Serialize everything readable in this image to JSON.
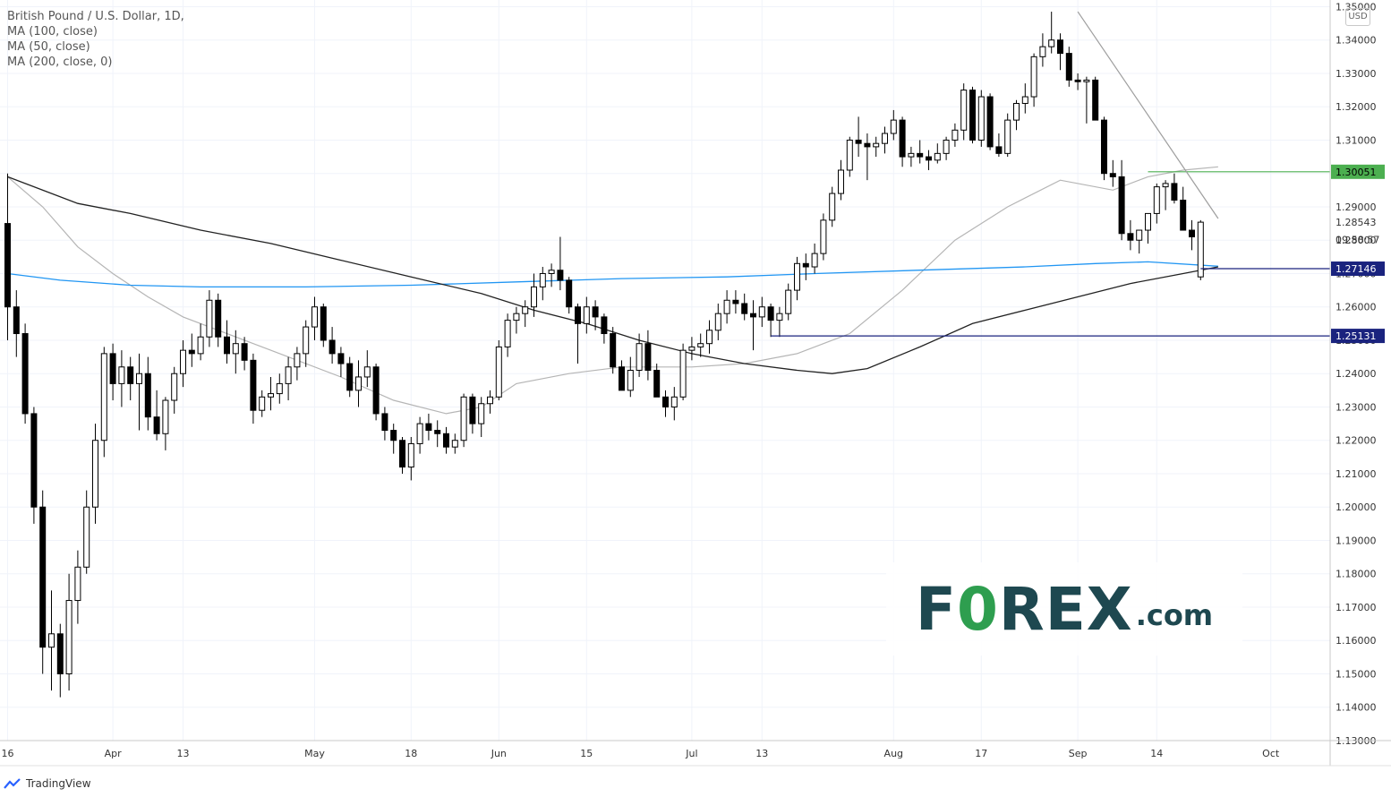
{
  "legend": {
    "title": "British Pound / U.S. Dollar, 1D,",
    "ma1": "MA (100, close)",
    "ma2": "MA (50, close)",
    "ma3": "MA (200, close, 0)"
  },
  "currency": "USD",
  "watermark": {
    "pre": "F",
    "o": "0",
    "post": "REX",
    "suffix": ".com"
  },
  "footer": {
    "brand": "TradingView",
    "icon": "tradingview-logo-icon"
  },
  "colors": {
    "ma100": "#222222",
    "ma50": "#b5b5b5",
    "ma200": "#2196f3",
    "resistance": "#4caf50",
    "support": "#1a237e",
    "trendline": "#9e9e9e"
  },
  "chart_data": {
    "type": "candlestick",
    "title": "British Pound / U.S. Dollar, 1D,",
    "ylim": [
      1.13,
      1.352
    ],
    "y_ticks": [
      "1.35000",
      "1.34000",
      "1.33000",
      "1.32000",
      "1.31000",
      "1.30000",
      "1.29000",
      "1.28000",
      "1.27000",
      "1.26000",
      "1.25000",
      "1.24000",
      "1.23000",
      "1.22000",
      "1.21000",
      "1.20000",
      "1.19000",
      "1.18000",
      "1.17000",
      "1.16000",
      "1.15000",
      "1.14000",
      "1.13000"
    ],
    "x_labels": [
      {
        "label": "16",
        "index": 0
      },
      {
        "label": "Apr",
        "index": 12
      },
      {
        "label": "13",
        "index": 20
      },
      {
        "label": "May",
        "index": 35
      },
      {
        "label": "18",
        "index": 46
      },
      {
        "label": "Jun",
        "index": 56
      },
      {
        "label": "15",
        "index": 66
      },
      {
        "label": "Jul",
        "index": 78
      },
      {
        "label": "13",
        "index": 86
      },
      {
        "label": "Aug",
        "index": 101
      },
      {
        "label": "17",
        "index": 111
      },
      {
        "label": "Sep",
        "index": 122
      },
      {
        "label": "14",
        "index": 131
      },
      {
        "label": "Oct",
        "index": 144
      }
    ],
    "price_labels": [
      {
        "text": "1.30051",
        "value": 1.30051,
        "style": "green"
      },
      {
        "text": "1.28543",
        "value": 1.28543,
        "style": "plain"
      },
      {
        "text": "09:58:57",
        "value": 1.2802,
        "style": "plain"
      },
      {
        "text": "1.27146",
        "value": 1.27146,
        "style": "navy"
      },
      {
        "text": "1.25131",
        "value": 1.25131,
        "style": "navy"
      }
    ],
    "levels": [
      {
        "name": "resistance",
        "value": 1.30051,
        "from_index": 130
      },
      {
        "name": "support-1",
        "value": 1.27146,
        "from_index": 136
      },
      {
        "name": "support-2",
        "value": 1.25131,
        "from_index": 87
      }
    ],
    "trendline": {
      "from": [
        122,
        1.3485
      ],
      "to": [
        138,
        1.2865
      ]
    },
    "candles": [
      [
        1.285,
        1.3,
        1.25,
        1.26
      ],
      [
        1.26,
        1.265,
        1.245,
        1.252
      ],
      [
        1.252,
        1.255,
        1.225,
        1.228
      ],
      [
        1.228,
        1.23,
        1.195,
        1.2
      ],
      [
        1.2,
        1.205,
        1.15,
        1.158
      ],
      [
        1.158,
        1.175,
        1.145,
        1.162
      ],
      [
        1.162,
        1.165,
        1.143,
        1.15
      ],
      [
        1.15,
        1.18,
        1.145,
        1.172
      ],
      [
        1.172,
        1.187,
        1.165,
        1.182
      ],
      [
        1.182,
        1.205,
        1.18,
        1.2
      ],
      [
        1.2,
        1.225,
        1.195,
        1.22
      ],
      [
        1.22,
        1.248,
        1.215,
        1.246
      ],
      [
        1.246,
        1.249,
        1.232,
        1.237
      ],
      [
        1.237,
        1.247,
        1.23,
        1.242
      ],
      [
        1.242,
        1.245,
        1.232,
        1.237
      ],
      [
        1.237,
        1.246,
        1.223,
        1.24
      ],
      [
        1.24,
        1.245,
        1.223,
        1.227
      ],
      [
        1.227,
        1.235,
        1.22,
        1.222
      ],
      [
        1.222,
        1.233,
        1.217,
        1.232
      ],
      [
        1.232,
        1.242,
        1.228,
        1.24
      ],
      [
        1.24,
        1.25,
        1.236,
        1.247
      ],
      [
        1.247,
        1.252,
        1.242,
        1.246
      ],
      [
        1.246,
        1.255,
        1.244,
        1.251
      ],
      [
        1.251,
        1.265,
        1.248,
        1.262
      ],
      [
        1.262,
        1.264,
        1.248,
        1.251
      ],
      [
        1.251,
        1.256,
        1.243,
        1.246
      ],
      [
        1.246,
        1.253,
        1.24,
        1.249
      ],
      [
        1.249,
        1.251,
        1.241,
        1.244
      ],
      [
        1.244,
        1.246,
        1.225,
        1.229
      ],
      [
        1.229,
        1.235,
        1.227,
        1.233
      ],
      [
        1.233,
        1.239,
        1.229,
        1.234
      ],
      [
        1.234,
        1.24,
        1.231,
        1.237
      ],
      [
        1.237,
        1.245,
        1.232,
        1.242
      ],
      [
        1.242,
        1.248,
        1.238,
        1.246
      ],
      [
        1.246,
        1.256,
        1.242,
        1.254
      ],
      [
        1.254,
        1.263,
        1.25,
        1.26
      ],
      [
        1.26,
        1.261,
        1.248,
        1.25
      ],
      [
        1.25,
        1.254,
        1.243,
        1.246
      ],
      [
        1.246,
        1.248,
        1.239,
        1.243
      ],
      [
        1.243,
        1.245,
        1.233,
        1.235
      ],
      [
        1.235,
        1.244,
        1.23,
        1.239
      ],
      [
        1.239,
        1.247,
        1.236,
        1.242
      ],
      [
        1.242,
        1.243,
        1.226,
        1.228
      ],
      [
        1.228,
        1.23,
        1.22,
        1.223
      ],
      [
        1.223,
        1.225,
        1.216,
        1.22
      ],
      [
        1.22,
        1.221,
        1.21,
        1.212
      ],
      [
        1.212,
        1.221,
        1.208,
        1.219
      ],
      [
        1.219,
        1.227,
        1.216,
        1.225
      ],
      [
        1.225,
        1.228,
        1.22,
        1.223
      ],
      [
        1.223,
        1.226,
        1.218,
        1.222
      ],
      [
        1.222,
        1.224,
        1.216,
        1.218
      ],
      [
        1.218,
        1.222,
        1.216,
        1.22
      ],
      [
        1.22,
        1.234,
        1.218,
        1.233
      ],
      [
        1.233,
        1.234,
        1.222,
        1.225
      ],
      [
        1.225,
        1.233,
        1.221,
        1.231
      ],
      [
        1.231,
        1.235,
        1.228,
        1.233
      ],
      [
        1.233,
        1.25,
        1.232,
        1.248
      ],
      [
        1.248,
        1.258,
        1.245,
        1.256
      ],
      [
        1.256,
        1.26,
        1.252,
        1.258
      ],
      [
        1.258,
        1.262,
        1.254,
        1.26
      ],
      [
        1.26,
        1.27,
        1.257,
        1.266
      ],
      [
        1.266,
        1.272,
        1.262,
        1.27
      ],
      [
        1.27,
        1.273,
        1.266,
        1.271
      ],
      [
        1.271,
        1.281,
        1.265,
        1.268
      ],
      [
        1.268,
        1.269,
        1.258,
        1.26
      ],
      [
        1.26,
        1.261,
        1.243,
        1.255
      ],
      [
        1.255,
        1.263,
        1.252,
        1.26
      ],
      [
        1.26,
        1.262,
        1.253,
        1.257
      ],
      [
        1.257,
        1.258,
        1.249,
        1.252
      ],
      [
        1.252,
        1.254,
        1.24,
        1.242
      ],
      [
        1.242,
        1.244,
        1.237,
        1.235
      ],
      [
        1.235,
        1.245,
        1.233,
        1.241
      ],
      [
        1.241,
        1.252,
        1.239,
        1.249
      ],
      [
        1.249,
        1.253,
        1.238,
        1.241
      ],
      [
        1.241,
        1.243,
        1.234,
        1.233
      ],
      [
        1.233,
        1.235,
        1.227,
        1.23
      ],
      [
        1.23,
        1.236,
        1.226,
        1.233
      ],
      [
        1.233,
        1.249,
        1.232,
        1.247
      ],
      [
        1.247,
        1.251,
        1.244,
        1.248
      ],
      [
        1.248,
        1.252,
        1.245,
        1.249
      ],
      [
        1.249,
        1.256,
        1.246,
        1.253
      ],
      [
        1.253,
        1.261,
        1.25,
        1.258
      ],
      [
        1.258,
        1.265,
        1.255,
        1.262
      ],
      [
        1.262,
        1.265,
        1.258,
        1.261
      ],
      [
        1.261,
        1.264,
        1.256,
        1.258
      ],
      [
        1.258,
        1.262,
        1.247,
        1.257
      ],
      [
        1.257,
        1.263,
        1.254,
        1.26
      ],
      [
        1.26,
        1.261,
        1.251,
        1.256
      ],
      [
        1.256,
        1.26,
        1.251,
        1.258
      ],
      [
        1.258,
        1.267,
        1.256,
        1.265
      ],
      [
        1.265,
        1.275,
        1.262,
        1.273
      ],
      [
        1.273,
        1.276,
        1.268,
        1.272
      ],
      [
        1.272,
        1.279,
        1.27,
        1.276
      ],
      [
        1.276,
        1.288,
        1.274,
        1.286
      ],
      [
        1.286,
        1.296,
        1.284,
        1.294
      ],
      [
        1.294,
        1.304,
        1.292,
        1.301
      ],
      [
        1.301,
        1.311,
        1.299,
        1.31
      ],
      [
        1.31,
        1.317,
        1.305,
        1.309
      ],
      [
        1.309,
        1.312,
        1.298,
        1.308
      ],
      [
        1.308,
        1.311,
        1.305,
        1.309
      ],
      [
        1.309,
        1.314,
        1.306,
        1.312
      ],
      [
        1.312,
        1.319,
        1.31,
        1.316
      ],
      [
        1.316,
        1.317,
        1.302,
        1.305
      ],
      [
        1.305,
        1.308,
        1.302,
        1.306
      ],
      [
        1.306,
        1.31,
        1.303,
        1.305
      ],
      [
        1.305,
        1.307,
        1.301,
        1.304
      ],
      [
        1.304,
        1.309,
        1.303,
        1.306
      ],
      [
        1.306,
        1.311,
        1.304,
        1.31
      ],
      [
        1.31,
        1.315,
        1.308,
        1.313
      ],
      [
        1.313,
        1.327,
        1.31,
        1.325
      ],
      [
        1.325,
        1.326,
        1.309,
        1.31
      ],
      [
        1.31,
        1.325,
        1.308,
        1.323
      ],
      [
        1.323,
        1.324,
        1.307,
        1.308
      ],
      [
        1.308,
        1.312,
        1.305,
        1.306
      ],
      [
        1.306,
        1.318,
        1.305,
        1.316
      ],
      [
        1.316,
        1.322,
        1.313,
        1.321
      ],
      [
        1.321,
        1.327,
        1.318,
        1.323
      ],
      [
        1.323,
        1.336,
        1.32,
        1.335
      ],
      [
        1.335,
        1.342,
        1.332,
        1.338
      ],
      [
        1.338,
        1.3485,
        1.336,
        1.34
      ],
      [
        1.34,
        1.342,
        1.331,
        1.336
      ],
      [
        1.336,
        1.338,
        1.326,
        1.328
      ],
      [
        1.328,
        1.33,
        1.325,
        1.3275
      ],
      [
        1.3275,
        1.329,
        1.315,
        1.328
      ],
      [
        1.328,
        1.329,
        1.316,
        1.316
      ],
      [
        1.316,
        1.317,
        1.298,
        1.3
      ],
      [
        1.3,
        1.304,
        1.296,
        1.299
      ],
      [
        1.299,
        1.304,
        1.28,
        1.282
      ],
      [
        1.282,
        1.286,
        1.277,
        1.28
      ],
      [
        1.28,
        1.283,
        1.276,
        1.283
      ],
      [
        1.283,
        1.288,
        1.279,
        1.288
      ],
      [
        1.288,
        1.297,
        1.285,
        1.296
      ],
      [
        1.296,
        1.298,
        1.289,
        1.297
      ],
      [
        1.297,
        1.3,
        1.291,
        1.292
      ],
      [
        1.292,
        1.296,
        1.285,
        1.283
      ],
      [
        1.283,
        1.286,
        1.277,
        1.281
      ],
      [
        1.269,
        1.286,
        1.268,
        1.2854
      ]
    ],
    "ma100": [
      [
        0,
        1.299
      ],
      [
        8,
        1.291
      ],
      [
        14,
        1.288
      ],
      [
        22,
        1.283
      ],
      [
        30,
        1.279
      ],
      [
        38,
        1.274
      ],
      [
        46,
        1.269
      ],
      [
        54,
        1.264
      ],
      [
        60,
        1.259
      ],
      [
        66,
        1.255
      ],
      [
        72,
        1.25
      ],
      [
        78,
        1.246
      ],
      [
        84,
        1.243
      ],
      [
        90,
        1.241
      ],
      [
        94,
        1.24
      ],
      [
        98,
        1.2415
      ],
      [
        104,
        1.248
      ],
      [
        110,
        1.255
      ],
      [
        116,
        1.259
      ],
      [
        122,
        1.263
      ],
      [
        128,
        1.267
      ],
      [
        134,
        1.27
      ],
      [
        138,
        1.272
      ]
    ],
    "ma50": [
      [
        0,
        1.299
      ],
      [
        4,
        1.29
      ],
      [
        8,
        1.278
      ],
      [
        12,
        1.27
      ],
      [
        16,
        1.263
      ],
      [
        20,
        1.257
      ],
      [
        26,
        1.251
      ],
      [
        32,
        1.245
      ],
      [
        38,
        1.239
      ],
      [
        44,
        1.232
      ],
      [
        50,
        1.228
      ],
      [
        54,
        1.23
      ],
      [
        58,
        1.237
      ],
      [
        64,
        1.24
      ],
      [
        70,
        1.242
      ],
      [
        78,
        1.242
      ],
      [
        84,
        1.243
      ],
      [
        90,
        1.246
      ],
      [
        96,
        1.252
      ],
      [
        102,
        1.265
      ],
      [
        108,
        1.28
      ],
      [
        114,
        1.29
      ],
      [
        120,
        1.298
      ],
      [
        126,
        1.295
      ],
      [
        130,
        1.299
      ],
      [
        134,
        1.301
      ],
      [
        138,
        1.302
      ]
    ],
    "ma200": [
      [
        0,
        1.27
      ],
      [
        6,
        1.268
      ],
      [
        14,
        1.2665
      ],
      [
        22,
        1.266
      ],
      [
        34,
        1.266
      ],
      [
        46,
        1.2665
      ],
      [
        58,
        1.2675
      ],
      [
        70,
        1.2685
      ],
      [
        82,
        1.269
      ],
      [
        92,
        1.27
      ],
      [
        104,
        1.271
      ],
      [
        116,
        1.272
      ],
      [
        124,
        1.273
      ],
      [
        130,
        1.2735
      ],
      [
        138,
        1.2722
      ]
    ]
  }
}
